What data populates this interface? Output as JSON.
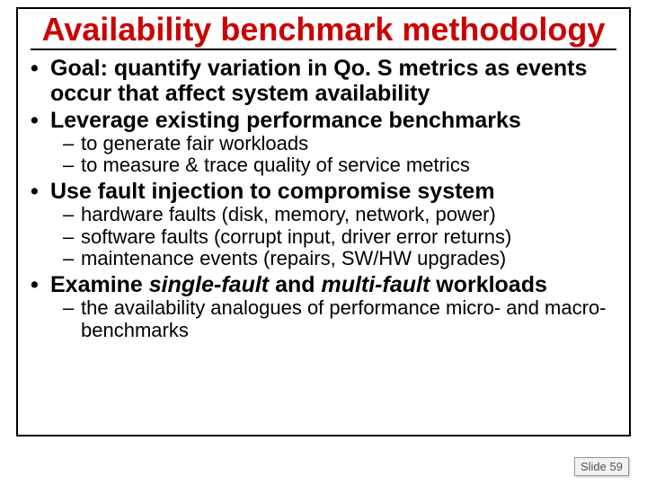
{
  "slide": {
    "title_color": "#cc0000",
    "body_color": "#000000",
    "title": "Availability benchmark methodology",
    "bullets": [
      {
        "level": 1,
        "text": "Goal: quantify variation in Qo. S metrics as events occur that affect system availability"
      },
      {
        "level": 1,
        "text": "Leverage existing performance benchmarks"
      },
      {
        "level": 2,
        "text": "to generate fair workloads"
      },
      {
        "level": 2,
        "text": "to measure & trace quality of service metrics"
      },
      {
        "level": 1,
        "text": "Use fault injection to compromise system"
      },
      {
        "level": 2,
        "text": "hardware faults (disk, memory, network, power)"
      },
      {
        "level": 2,
        "text": "software faults (corrupt input, driver error returns)"
      },
      {
        "level": 2,
        "text": "maintenance events (repairs, SW/HW upgrades)"
      },
      {
        "level": 1,
        "html": "Examine <span class=\"em\">single-fault</span> and <span class=\"em\">multi-fault</span> workloads"
      },
      {
        "level": 2,
        "text": "the availability analogues of performance micro- and macro-benchmarks"
      }
    ],
    "footer_label": "Slide",
    "footer_number": "59"
  }
}
